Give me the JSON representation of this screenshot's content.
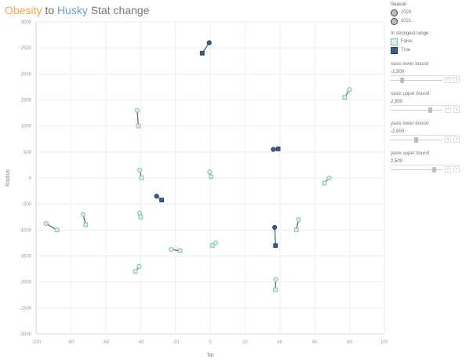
{
  "title": {
    "part_a": "Obesity",
    "part_b": " to ",
    "part_c": "Husky",
    "part_d": " Stat change"
  },
  "legend": {
    "size_title": "Season",
    "size_items": [
      "2020",
      "2021"
    ],
    "color_title": "In strongest range",
    "color_items": [
      "False",
      "True"
    ]
  },
  "controls": [
    {
      "label": "xaxis lower bound",
      "value": "-2,500"
    },
    {
      "label": "xaxis upper bound",
      "value": "2,500"
    },
    {
      "label": "yaxis lower bound",
      "value": "-2,500"
    },
    {
      "label": "yaxis upper bound",
      "value": "2,500"
    }
  ],
  "colors": {
    "false_fill": "#d9f0e6",
    "false_stroke": "#86c4a8",
    "true_fill": "#3d5f8f",
    "true_stroke": "#263f66",
    "connector": "#555555",
    "grid": "#eeeeee"
  },
  "chart_data": {
    "type": "scatter",
    "xlabel": "Tar",
    "ylabel": "Radius",
    "x_ticks": [
      "-100",
      "-80",
      "-60",
      "-40",
      "-20",
      "0",
      "20",
      "40",
      "60",
      "80",
      "100"
    ],
    "y_ticks": [
      "3000",
      "2500",
      "2000",
      "1500",
      "1000",
      "500",
      "0",
      "-500",
      "-1000",
      "-1500",
      "-2000",
      "-2500",
      "-3000"
    ],
    "xlim": [
      -100,
      100
    ],
    "ylim": [
      -3000,
      3000
    ],
    "grid": true,
    "segments": [
      {
        "from": [
          -0.6,
          2600
        ],
        "to": [
          -4.6,
          2400
        ],
        "strongest": true
      },
      {
        "from": [
          80,
          1700
        ],
        "to": [
          77.2,
          1550
        ],
        "strongest": false
      },
      {
        "from": [
          -41.9,
          1300
        ],
        "to": [
          -41.3,
          1000
        ],
        "strongest": false
      },
      {
        "from": [
          36.2,
          550
        ],
        "to": [
          39.0,
          560
        ],
        "strongest": true
      },
      {
        "from": [
          -0.3,
          120
        ],
        "to": [
          0.5,
          25
        ],
        "strongest": false
      },
      {
        "from": [
          68.2,
          1
        ],
        "to": [
          65.6,
          -100
        ],
        "strongest": false
      },
      {
        "from": [
          -40.5,
          150
        ],
        "to": [
          -39.5,
          5
        ],
        "strongest": false
      },
      {
        "from": [
          -30.8,
          -350
        ],
        "to": [
          -27.9,
          -425
        ],
        "strongest": true
      },
      {
        "from": [
          -40.5,
          -675
        ],
        "to": [
          -39.9,
          -750
        ],
        "strongest": false
      },
      {
        "from": [
          -73.0,
          -700
        ],
        "to": [
          -71.5,
          -900
        ],
        "strongest": false
      },
      {
        "from": [
          -94.3,
          -875
        ],
        "to": [
          -88.0,
          -1000
        ],
        "strongest": false
      },
      {
        "from": [
          50.7,
          -800
        ],
        "to": [
          49.4,
          -1000
        ],
        "strongest": false
      },
      {
        "from": [
          3.1,
          -1250
        ],
        "to": [
          1.2,
          -1300
        ],
        "strongest": false
      },
      {
        "from": [
          -22.5,
          -1375
        ],
        "to": [
          -17.3,
          -1400
        ],
        "strongest": false
      },
      {
        "from": [
          -40.8,
          -1700
        ],
        "to": [
          -43.0,
          -1800
        ],
        "strongest": false
      },
      {
        "from": [
          37.6,
          -1950
        ],
        "to": [
          37.4,
          -2150
        ],
        "strongest": false
      },
      {
        "from": [
          37.0,
          -950
        ],
        "to": [
          37.5,
          -1300
        ],
        "strongest": true
      }
    ]
  }
}
